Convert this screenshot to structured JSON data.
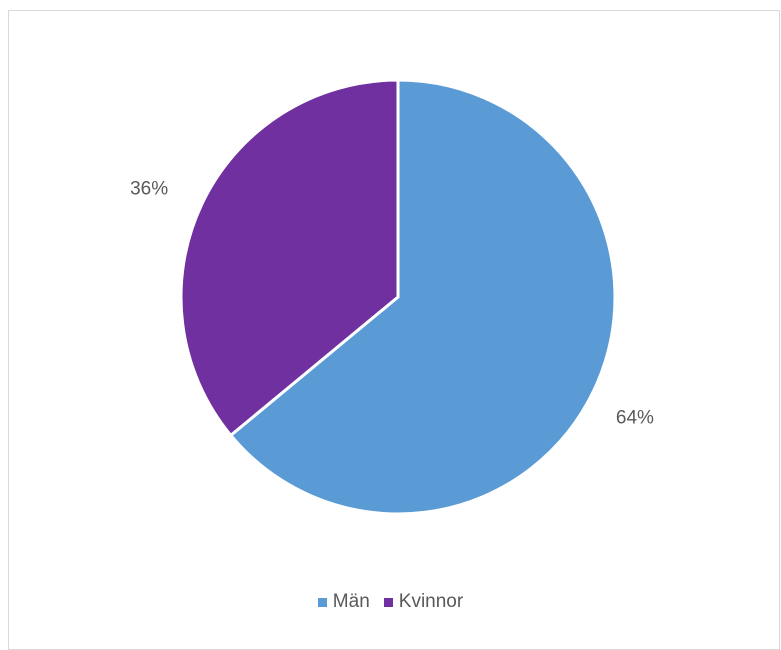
{
  "chart_data": {
    "type": "pie",
    "categories": [
      "Män",
      "Kvinnor"
    ],
    "values": [
      64,
      36
    ],
    "labels": [
      "64%",
      "36%"
    ],
    "colors": [
      "#5b9bd5",
      "#7030a0"
    ],
    "legend_position": "bottom",
    "start_angle_deg": 0,
    "direction": "clockwise"
  },
  "legend": {
    "items": [
      {
        "label": "Män",
        "color": "#5b9bd5"
      },
      {
        "label": "Kvinnor",
        "color": "#7030a0"
      }
    ]
  }
}
